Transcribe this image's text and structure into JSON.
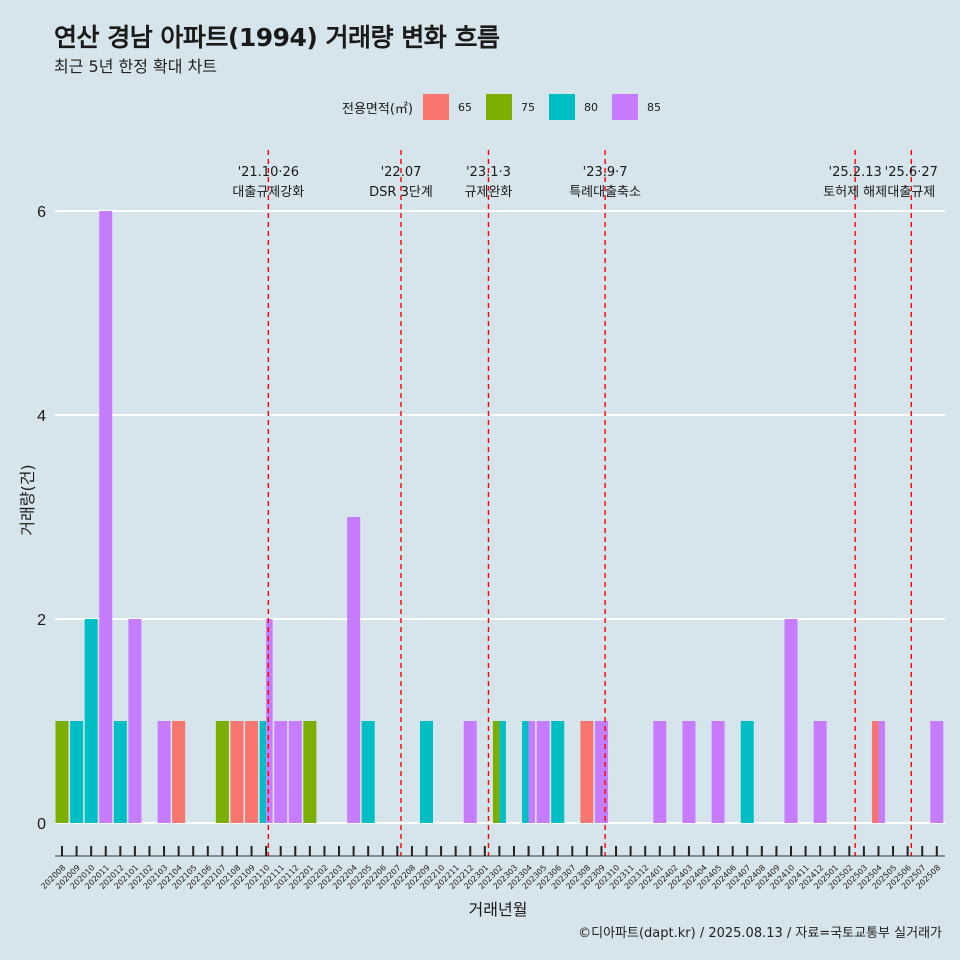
{
  "title": "연산 경남 아파트(1994) 거래량 변화 흐름",
  "subtitle": "최근 5년 한정 확대 차트",
  "legend_title": "전용면적(㎡)",
  "caption": "©디아파트(dapt.kr) / 2025.08.13 / 자료=국토교통부 실거래가",
  "chart_data": {
    "type": "bar",
    "xlabel": "거래년월",
    "ylabel": "거래량(건)",
    "ylim": [
      0,
      6.5
    ],
    "yticks": [
      0,
      2,
      4,
      6
    ],
    "grid": true,
    "legend_position": "top",
    "categories": [
      "202008",
      "202009",
      "202010",
      "202011",
      "202012",
      "202101",
      "202102",
      "202103",
      "202104",
      "202105",
      "202106",
      "202107",
      "202108",
      "202109",
      "202110",
      "202111",
      "202112",
      "202201",
      "202202",
      "202203",
      "202204",
      "202205",
      "202206",
      "202207",
      "202208",
      "202209",
      "202210",
      "202211",
      "202212",
      "202301",
      "202302",
      "202303",
      "202304",
      "202305",
      "202306",
      "202307",
      "202308",
      "202309",
      "202310",
      "202311",
      "202312",
      "202401",
      "202402",
      "202403",
      "202404",
      "202405",
      "202406",
      "202407",
      "202408",
      "202409",
      "202410",
      "202411",
      "202412",
      "202501",
      "202502",
      "202503",
      "202504",
      "202505",
      "202506",
      "202507",
      "202508"
    ],
    "series": [
      {
        "name": "65",
        "color": "#f8766d",
        "values": {
          "202104": 1,
          "202108": 1,
          "202109": 1,
          "202308": 1,
          "202504": 1
        }
      },
      {
        "name": "75",
        "color": "#7cae00",
        "values": {
          "202008": 1,
          "202107": 1,
          "202201": 1,
          "202302": 1
        }
      },
      {
        "name": "80",
        "color": "#00bfc4",
        "values": {
          "202009": 1,
          "202010": 2,
          "202012": 1,
          "202110": 1,
          "202205": 1,
          "202209": 1,
          "202302": 1,
          "202304": 1,
          "202306": 1,
          "202407": 1
        }
      },
      {
        "name": "85",
        "color": "#c77cff",
        "values": {
          "202011": 6,
          "202101": 2,
          "202103": 1,
          "202110": 2,
          "202111": 1,
          "202112": 1,
          "202204": 3,
          "202212": 1,
          "202304": 1,
          "202305": 1,
          "202309": 1,
          "202401": 1,
          "202403": 1,
          "202405": 1,
          "202410": 2,
          "202412": 1,
          "202504": 1,
          "202508": 1
        }
      }
    ],
    "events": [
      {
        "date": "'21.10·26",
        "label": "대출규제강화",
        "at": 14.15
      },
      {
        "date": "'22.07",
        "label": "DSR 3단계",
        "at": 23.25
      },
      {
        "date": "'23.1·3",
        "label": "규제완화",
        "at": 29.25
      },
      {
        "date": "'23.9·7",
        "label": "특례대출축소",
        "at": 37.25
      },
      {
        "date": "'25.2.13",
        "label": "토허제 해제",
        "at": 54.4
      },
      {
        "date": "'25.6·27",
        "label": "대출규제",
        "at": 58.25
      }
    ]
  }
}
